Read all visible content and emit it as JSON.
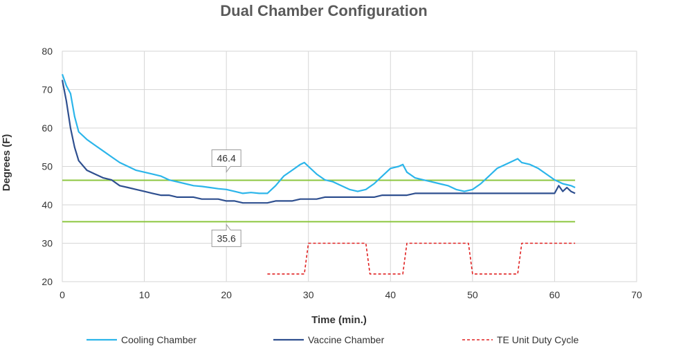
{
  "chart_data": {
    "type": "line",
    "title": "Dual Chamber Configuration",
    "xlabel": "Time (min.)",
    "ylabel": "Degrees (F)",
    "xlim": [
      0,
      70
    ],
    "ylim": [
      20,
      80
    ],
    "xticks": [
      "0",
      "10",
      "20",
      "30",
      "40",
      "50",
      "60",
      "70"
    ],
    "yticks": [
      "20",
      "30",
      "40",
      "50",
      "60",
      "70",
      "80"
    ],
    "grid": true,
    "legend_position": "bottom",
    "series": [
      {
        "name": "Cooling Chamber",
        "color": "#2bb5ea",
        "style": "solid",
        "x": [
          0,
          0.5,
          1,
          1.5,
          2,
          3,
          4,
          5,
          6,
          7,
          8,
          9,
          10,
          11,
          12,
          13,
          14,
          15,
          16,
          17,
          18,
          19,
          20,
          21,
          22,
          23,
          24,
          25,
          26,
          27,
          28,
          29,
          29.5,
          30,
          31,
          32,
          33,
          34,
          35,
          36,
          37,
          38,
          39,
          40,
          41,
          41.5,
          42,
          43,
          44,
          45,
          46,
          47,
          48,
          49,
          50,
          51,
          52,
          53,
          54,
          55,
          55.5,
          56,
          57,
          58,
          59,
          60,
          61,
          62,
          62.5
        ],
        "y": [
          74,
          71,
          69,
          63,
          59,
          57,
          55.5,
          54,
          52.5,
          51,
          50,
          49,
          48.5,
          48,
          47.5,
          46.5,
          46,
          45.5,
          45,
          44.8,
          44.5,
          44.2,
          44,
          43.5,
          43,
          43.2,
          43,
          43,
          45,
          47.5,
          49,
          50.5,
          51,
          50,
          48,
          46.5,
          46,
          45,
          44,
          43.5,
          44,
          45.5,
          47.5,
          49.5,
          50,
          50.5,
          48.5,
          47,
          46.5,
          46,
          45.5,
          45,
          44,
          43.5,
          44,
          45.5,
          47.5,
          49.5,
          50.5,
          51.5,
          52,
          51,
          50.5,
          49.5,
          48,
          46.5,
          45.5,
          45,
          44.5
        ]
      },
      {
        "name": "Vaccine Chamber",
        "color": "#2e4f8f",
        "style": "solid",
        "x": [
          0,
          0.5,
          1,
          1.5,
          2,
          3,
          4,
          5,
          6,
          7,
          8,
          9,
          10,
          11,
          12,
          13,
          14,
          15,
          16,
          17,
          18,
          19,
          20,
          21,
          22,
          23,
          24,
          25,
          26,
          27,
          28,
          29,
          30,
          31,
          32,
          33,
          34,
          35,
          36,
          37,
          38,
          39,
          40,
          41,
          42,
          43,
          44,
          45,
          46,
          47,
          48,
          49,
          50,
          51,
          52,
          53,
          54,
          55,
          56,
          57,
          58,
          59,
          60,
          60.5,
          61,
          61.5,
          62,
          62.5
        ],
        "y": [
          72.5,
          67,
          60,
          55,
          51.5,
          49,
          48,
          47,
          46.5,
          45,
          44.5,
          44,
          43.5,
          43,
          42.5,
          42.5,
          42,
          42,
          42,
          41.5,
          41.5,
          41.5,
          41,
          41,
          40.5,
          40.5,
          40.5,
          40.5,
          41,
          41,
          41,
          41.5,
          41.5,
          41.5,
          42,
          42,
          42,
          42,
          42,
          42,
          42,
          42.5,
          42.5,
          42.5,
          42.5,
          43,
          43,
          43,
          43,
          43,
          43,
          43,
          43,
          43,
          43,
          43,
          43,
          43,
          43,
          43,
          43,
          43,
          43,
          45,
          43.5,
          44.5,
          43.5,
          43
        ]
      },
      {
        "name": "TE Unit Duty Cycle",
        "color": "#e02020",
        "style": "dashed",
        "x": [
          25,
          29.5,
          30,
          37,
          37.5,
          41.5,
          42,
          49.5,
          50,
          55.5,
          56,
          62.5
        ],
        "y": [
          22,
          22,
          30,
          30,
          22,
          22,
          30,
          30,
          22,
          22,
          30,
          30
        ]
      }
    ],
    "reference_lines": [
      {
        "value": 46.4,
        "label": "46.4",
        "color": "#8cc63f"
      },
      {
        "value": 35.6,
        "label": "35.6",
        "color": "#8cc63f"
      }
    ]
  }
}
